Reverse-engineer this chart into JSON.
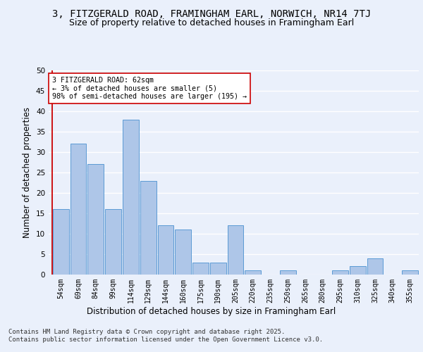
{
  "title": "3, FITZGERALD ROAD, FRAMINGHAM EARL, NORWICH, NR14 7TJ",
  "subtitle": "Size of property relative to detached houses in Framingham Earl",
  "xlabel": "Distribution of detached houses by size in Framingham Earl",
  "ylabel": "Number of detached properties",
  "footer": "Contains HM Land Registry data © Crown copyright and database right 2025.\nContains public sector information licensed under the Open Government Licence v3.0.",
  "categories": [
    "54sqm",
    "69sqm",
    "84sqm",
    "99sqm",
    "114sqm",
    "129sqm",
    "144sqm",
    "160sqm",
    "175sqm",
    "190sqm",
    "205sqm",
    "220sqm",
    "235sqm",
    "250sqm",
    "265sqm",
    "280sqm",
    "295sqm",
    "310sqm",
    "325sqm",
    "340sqm",
    "355sqm"
  ],
  "values": [
    16,
    32,
    27,
    16,
    38,
    23,
    12,
    11,
    3,
    3,
    12,
    1,
    0,
    1,
    0,
    0,
    1,
    2,
    4,
    0,
    1
  ],
  "bar_color": "#aec6e8",
  "bar_edge_color": "#5b9bd5",
  "highlight_line_color": "#cc0000",
  "annotation_text": "3 FITZGERALD ROAD: 62sqm\n← 3% of detached houses are smaller (5)\n98% of semi-detached houses are larger (195) →",
  "annotation_box_color": "#ffffff",
  "annotation_box_edge_color": "#cc0000",
  "ylim": [
    0,
    50
  ],
  "yticks": [
    0,
    5,
    10,
    15,
    20,
    25,
    30,
    35,
    40,
    45,
    50
  ],
  "bg_color": "#eaf0fb",
  "plot_bg_color": "#eaf0fb",
  "grid_color": "#ffffff",
  "title_fontsize": 10,
  "subtitle_fontsize": 9,
  "tick_fontsize": 7,
  "ylabel_fontsize": 8.5,
  "xlabel_fontsize": 8.5,
  "footer_fontsize": 6.5
}
